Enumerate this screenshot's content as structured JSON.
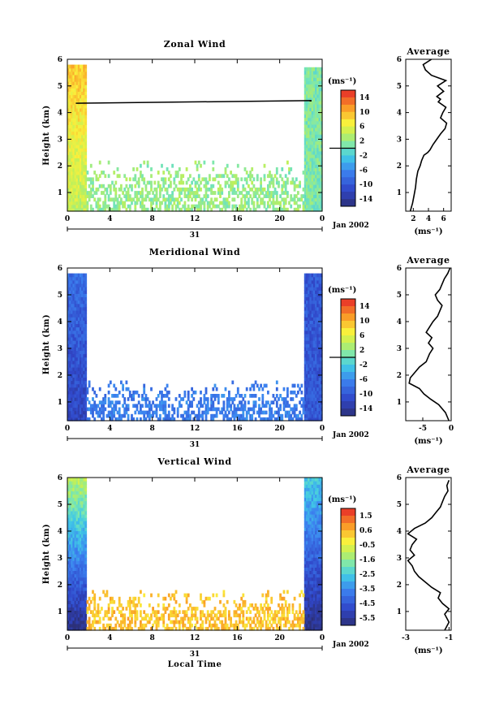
{
  "figure": {
    "time_axis_label": "Local Time",
    "height_axis_label": "Height (km)",
    "date_label": "Jan 2002",
    "day_label": "31",
    "time_ticks": [
      "0",
      "4",
      "8",
      "12",
      "16",
      "20",
      "0"
    ],
    "height_ticks": [
      "1",
      "2",
      "3",
      "4",
      "5",
      "6"
    ],
    "average_title": "Average",
    "unit_label": "(ms⁻¹)"
  },
  "chart_data": [
    {
      "type": "heatmap",
      "title": "Zonal Wind",
      "xlabel": "",
      "ylabel": "Height (km)",
      "xlim": [
        0,
        24
      ],
      "ylim": [
        0.3,
        6
      ],
      "colorbar": {
        "label": "(ms⁻¹)",
        "min": -16,
        "max": 16,
        "ticks": [
          "14",
          "10",
          "6",
          "2",
          "-2",
          "-6",
          "-10",
          "-14"
        ],
        "zero_line": 0
      },
      "field": {
        "early_block": {
          "t": [
            0,
            1.8
          ],
          "h": [
            0.3,
            5.8
          ],
          "upper_value": 9,
          "lower_value": 4
        },
        "late_block": {
          "t": [
            22.3,
            24
          ],
          "h": [
            0.3,
            5.7
          ],
          "value": 1
        },
        "mid_band": {
          "t": [
            1.8,
            22.3
          ],
          "h": [
            0.3,
            2.2
          ],
          "value": 2
        },
        "black_line": {
          "t": [
            0.8,
            23.0
          ],
          "h": [
            4.35,
            4.45
          ]
        }
      }
    },
    {
      "type": "line",
      "title": "Average",
      "xlabel": "(ms⁻¹)",
      "ylabel": "",
      "xlim": [
        1,
        7
      ],
      "ylim": [
        0.3,
        6
      ],
      "xticks": [
        "2",
        "4",
        "6"
      ],
      "x": [
        1.6,
        1.9,
        2.1,
        2.3,
        2.4,
        2.6,
        2.9,
        3.1,
        3.4,
        3.9,
        4.2,
        4.6,
        5.1,
        5.6,
        6.2,
        6.4,
        5.6,
        5.9,
        6.3,
        5.3,
        5.6,
        5.1,
        6.0,
        5.2,
        6.3,
        4.4,
        3.6,
        3.3,
        4.4
      ],
      "y": [
        0.3,
        0.6,
        0.9,
        1.2,
        1.5,
        1.8,
        2.0,
        2.2,
        2.4,
        2.5,
        2.6,
        2.8,
        3.0,
        3.2,
        3.4,
        3.6,
        3.8,
        4.0,
        4.2,
        4.4,
        4.5,
        4.6,
        4.8,
        5.0,
        5.2,
        5.4,
        5.6,
        5.8,
        6.0
      ]
    },
    {
      "type": "heatmap",
      "title": "Meridional Wind",
      "xlabel": "",
      "ylabel": "Height (km)",
      "xlim": [
        0,
        24
      ],
      "ylim": [
        0.3,
        6
      ],
      "colorbar": {
        "label": "(ms⁻¹)",
        "min": -16,
        "max": 16,
        "ticks": [
          "14",
          "10",
          "6",
          "2",
          "-2",
          "-6",
          "-10",
          "-14"
        ],
        "zero_line": 0
      },
      "field": {
        "early_block": {
          "t": [
            0,
            1.8
          ],
          "h": [
            0.3,
            5.8
          ],
          "upper_value": -8,
          "lower_value": -12
        },
        "late_block": {
          "t": [
            22.3,
            24
          ],
          "h": [
            0.3,
            5.8
          ],
          "value": -10
        },
        "mid_band": {
          "t": [
            1.8,
            22.3
          ],
          "h": [
            0.3,
            1.8
          ],
          "value": -7
        }
      }
    },
    {
      "type": "line",
      "title": "Average",
      "xlabel": "(ms⁻¹)",
      "ylabel": "",
      "xlim": [
        -8,
        0
      ],
      "ylim": [
        0.3,
        6
      ],
      "xticks": [
        "-5",
        "0"
      ],
      "x": [
        -0.4,
        -1.0,
        -2.2,
        -3.6,
        -4.8,
        -5.6,
        -7.4,
        -7.2,
        -6.4,
        -5.6,
        -4.4,
        -3.8,
        -3.2,
        -4.0,
        -3.4,
        -4.4,
        -3.8,
        -3.2,
        -2.4,
        -2.0,
        -1.6,
        -2.4,
        -2.8,
        -2.0,
        -1.6,
        -1.2,
        -0.6,
        -0.2
      ],
      "y": [
        0.3,
        0.6,
        0.9,
        1.1,
        1.3,
        1.5,
        1.7,
        1.9,
        2.1,
        2.3,
        2.5,
        2.8,
        3.0,
        3.2,
        3.4,
        3.6,
        3.8,
        4.0,
        4.2,
        4.4,
        4.6,
        4.8,
        5.0,
        5.2,
        5.4,
        5.6,
        5.8,
        6.0
      ]
    },
    {
      "type": "heatmap",
      "title": "Vertical Wind",
      "xlabel": "Local Time",
      "ylabel": "Height (km)",
      "xlim": [
        0,
        24
      ],
      "ylim": [
        0.3,
        6
      ],
      "colorbar": {
        "label": "(ms⁻¹)",
        "min": -6.0,
        "max": 2.0,
        "ticks": [
          "1.5",
          "0.6",
          "-0.5",
          "-1.6",
          "-2.5",
          "-3.5",
          "-4.5",
          "-5.5"
        ]
      },
      "field": {
        "early_block": {
          "t": [
            0,
            1.8
          ],
          "h": [
            0.3,
            6.0
          ],
          "upper_value": -1.0,
          "lower_value": -5.8
        },
        "late_block": {
          "t": [
            22.3,
            24
          ],
          "h": [
            0.3,
            6.0
          ],
          "upper_value": -2.5,
          "lower_value": -5.8
        },
        "mid_band": {
          "t": [
            1.8,
            22.3
          ],
          "h": [
            0.3,
            1.8
          ],
          "value": 0.3
        }
      }
    },
    {
      "type": "line",
      "title": "Average",
      "xlabel": "(ms⁻¹)",
      "ylabel": "",
      "xlim": [
        -3,
        -0.9
      ],
      "ylim": [
        0.3,
        6
      ],
      "xticks": [
        "-3",
        "-1"
      ],
      "x": [
        -1.2,
        -1.0,
        -1.2,
        -1.0,
        -1.3,
        -1.5,
        -1.4,
        -1.8,
        -2.1,
        -2.4,
        -2.6,
        -2.7,
        -2.9,
        -2.6,
        -2.8,
        -2.7,
        -2.5,
        -2.9,
        -2.6,
        -2.1,
        -1.8,
        -1.6,
        -1.4,
        -1.3,
        -1.2,
        -1.05,
        -1.1,
        -1.0
      ],
      "y": [
        0.3,
        0.6,
        0.9,
        1.1,
        1.3,
        1.5,
        1.7,
        1.9,
        2.1,
        2.3,
        2.5,
        2.7,
        2.9,
        3.1,
        3.3,
        3.5,
        3.7,
        3.9,
        4.1,
        4.3,
        4.5,
        4.7,
        4.9,
        5.1,
        5.3,
        5.5,
        5.7,
        5.9
      ]
    }
  ]
}
